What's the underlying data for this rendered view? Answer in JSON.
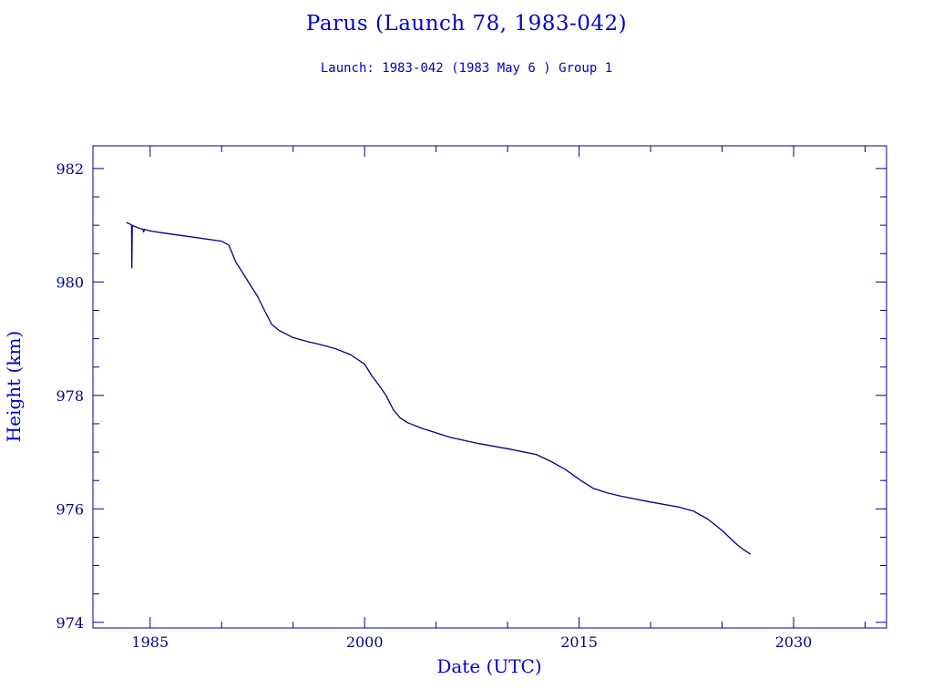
{
  "title": "Parus (Launch 78, 1983-042)",
  "subtitle": "Launch: 1983-042  (1983 May  6 )  Group 1",
  "colors": {
    "text": "#0000c8",
    "axes": "#00008b",
    "line": "#00008b",
    "background": "#ffffff"
  },
  "chart_data": {
    "type": "line",
    "title": "Parus (Launch 78, 1983-042)",
    "subtitle": "Launch: 1983-042  (1983 May  6 )  Group 1",
    "xlabel": "Date (UTC)",
    "ylabel": "Height (km)",
    "xlim": [
      1981,
      2036.5
    ],
    "ylim": [
      973.9,
      982.4
    ],
    "xticks": [
      1985,
      2000,
      2015,
      2030
    ],
    "xtick_labels": [
      "1985",
      "2000",
      "2015",
      "2030"
    ],
    "yticks": [
      974,
      976,
      978,
      980,
      982
    ],
    "ytick_labels": [
      "974",
      "976",
      "978",
      "980",
      "982"
    ],
    "grid": false,
    "legend": "none",
    "series": [
      {
        "x": [
          1983.35,
          1983.5,
          1983.6,
          1983.7,
          1983.72,
          1983.75,
          1983.9,
          1984.2,
          1984.5,
          1984.55,
          1984.6,
          1985.0,
          1986.0,
          1988.0,
          1990.0,
          1990.5,
          1991.0,
          1991.5,
          1992.0,
          1992.5,
          1993.0,
          1993.5,
          1994.0,
          1995.0,
          1996.0,
          1997.0,
          1998.0,
          1999.0,
          2000.0,
          2000.5,
          2001.0,
          2001.5,
          2002.0,
          2002.5,
          2003.0,
          2004.0,
          2005.0,
          2006.0,
          2008.0,
          2010.0,
          2012.0,
          2013.0,
          2014.0,
          2015.0,
          2016.0,
          2017.0,
          2018.0,
          2020.0,
          2022.0,
          2023.0,
          2024.0,
          2025.0,
          2026.0,
          2026.5,
          2027.0
        ],
        "y": [
          981.05,
          981.03,
          981.02,
          981.0,
          980.25,
          981.0,
          980.98,
          980.95,
          980.93,
          980.88,
          980.93,
          980.9,
          980.86,
          980.79,
          980.72,
          980.65,
          980.35,
          980.15,
          979.95,
          979.75,
          979.5,
          979.25,
          979.15,
          979.02,
          978.95,
          978.89,
          978.82,
          978.72,
          978.55,
          978.35,
          978.18,
          978.0,
          977.75,
          977.6,
          977.52,
          977.42,
          977.34,
          977.26,
          977.15,
          977.06,
          976.96,
          976.84,
          976.7,
          976.52,
          976.36,
          976.28,
          976.22,
          976.12,
          976.03,
          975.96,
          975.82,
          975.62,
          975.38,
          975.28,
          975.2
        ]
      }
    ]
  }
}
